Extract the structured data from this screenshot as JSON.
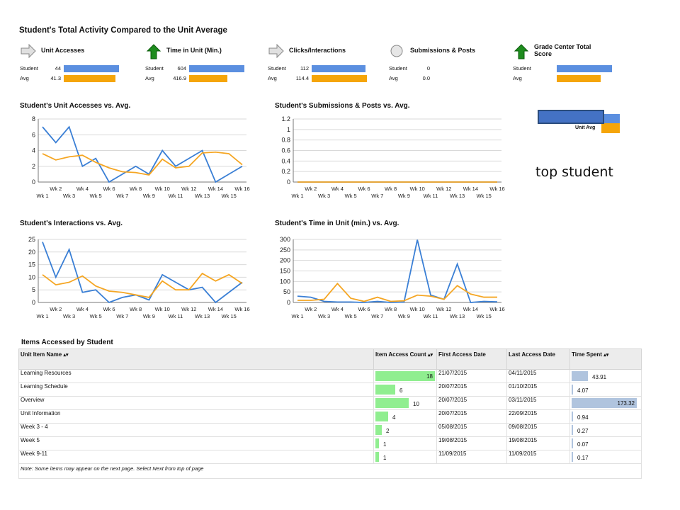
{
  "header": {
    "title": "Student's Total Activity Compared to the Unit Average"
  },
  "metrics": [
    {
      "label": "Unit Accesses",
      "icon": "gray-arrow-right-icon",
      "student": "44",
      "avg": "41.3",
      "student_frac": 1.0,
      "avg_frac": 0.94
    },
    {
      "label": "Time in Unit (Min.)",
      "icon": "green-arrow-up-icon",
      "student": "604",
      "avg": "416.9",
      "student_frac": 1.0,
      "avg_frac": 0.69
    },
    {
      "label": "Clicks/Interactions",
      "icon": "gray-arrow-right-icon",
      "student": "112",
      "avg": "114.4",
      "student_frac": 0.98,
      "avg_frac": 1.0
    },
    {
      "label": "Submissions & Posts",
      "icon": "gray-circle-icon",
      "student": "0",
      "avg": "0.0",
      "student_frac": 0,
      "avg_frac": 0
    },
    {
      "label": "Grade Center Total Score",
      "icon": "green-arrow-up-icon",
      "student": "",
      "avg": "",
      "student_frac": 1.0,
      "avg_frac": 0.8
    }
  ],
  "row_labels": {
    "student": "Student",
    "avg": "Avg"
  },
  "legend": {
    "label": "Unit Avg"
  },
  "annotation": "top student",
  "chart_data": [
    {
      "type": "line",
      "title": "Student's Unit Accesses vs. Avg.",
      "x": [
        "Wk 1",
        "Wk 2",
        "Wk 3",
        "Wk 4",
        "Wk 5",
        "Wk 6",
        "Wk 7",
        "Wk 8",
        "Wk 9",
        "Wk 10",
        "Wk 11",
        "Wk 12",
        "Wk 13",
        "Wk 14",
        "Wk 15",
        "Wk 16"
      ],
      "ylim": [
        0,
        8
      ],
      "yticks": [
        "0",
        "2",
        "4",
        "6",
        "8"
      ],
      "ytick_values": [
        0,
        2,
        4,
        6,
        8
      ],
      "series": [
        {
          "color": "#3a7fd5",
          "values": [
            7,
            5,
            7,
            2,
            3,
            0,
            1,
            2,
            1,
            4,
            2,
            3,
            4,
            0,
            1,
            2
          ]
        },
        {
          "color": "#f5a623",
          "values": [
            3.6,
            2.8,
            3.2,
            3.4,
            2.5,
            1.8,
            1.3,
            1.2,
            0.9,
            2.9,
            1.8,
            2.0,
            3.7,
            3.8,
            3.6,
            2.2
          ]
        }
      ]
    },
    {
      "type": "line",
      "title": "Student's Submissions & Posts vs. Avg.",
      "x": [
        "Wk 1",
        "Wk 2",
        "Wk 3",
        "Wk 4",
        "Wk 5",
        "Wk 6",
        "Wk 7",
        "Wk 8",
        "Wk 9",
        "Wk 10",
        "Wk 11",
        "Wk 12",
        "Wk 13",
        "Wk 14",
        "Wk 15",
        "Wk 16"
      ],
      "ylim": [
        0,
        1.2
      ],
      "yticks": [
        "0",
        "0.2",
        "0.4",
        "0.6",
        "0.8",
        "1",
        "1.2"
      ],
      "ytick_values": [
        0,
        0.2,
        0.4,
        0.6,
        0.8,
        1,
        1.2
      ],
      "series": [
        {
          "color": "#3a7fd5",
          "values": [
            0,
            0,
            0,
            0,
            0,
            0,
            0,
            0,
            0,
            0,
            0,
            0,
            0,
            0,
            0,
            0
          ]
        },
        {
          "color": "#f5a623",
          "values": [
            0,
            0,
            0,
            0,
            0,
            0,
            0,
            0,
            0,
            0,
            0,
            0,
            0,
            0,
            0,
            0
          ]
        }
      ]
    },
    {
      "type": "line",
      "title": "Student's Interactions vs. Avg.",
      "x": [
        "Wk 1",
        "Wk 2",
        "Wk 3",
        "Wk 4",
        "Wk 5",
        "Wk 6",
        "Wk 7",
        "Wk 8",
        "Wk 9",
        "Wk 10",
        "Wk 11",
        "Wk 12",
        "Wk 13",
        "Wk 14",
        "Wk 15",
        "Wk 16"
      ],
      "ylim": [
        0,
        25
      ],
      "yticks": [
        "0",
        "5",
        "10",
        "15",
        "20",
        "25"
      ],
      "ytick_values": [
        0,
        5,
        10,
        15,
        20,
        25
      ],
      "series": [
        {
          "color": "#3a7fd5",
          "values": [
            24,
            10,
            21,
            4,
            5,
            0,
            2,
            3,
            1,
            11,
            8,
            5,
            6,
            0,
            4,
            8
          ]
        },
        {
          "color": "#f5a623",
          "values": [
            11,
            7,
            8,
            10.5,
            6.5,
            4.5,
            4,
            3,
            2,
            8.5,
            5,
            5,
            11.5,
            8.5,
            11,
            7.5
          ]
        }
      ]
    },
    {
      "type": "line",
      "title": "Student's Time in Unit (min.) vs. Avg.",
      "x": [
        "Wk 1",
        "Wk 2",
        "Wk 3",
        "Wk 4",
        "Wk 5",
        "Wk 6",
        "Wk 7",
        "Wk 8",
        "Wk 9",
        "Wk 10",
        "Wk 11",
        "Wk 12",
        "Wk 13",
        "Wk 14",
        "Wk 15",
        "Wk 16"
      ],
      "ylim": [
        0,
        300
      ],
      "yticks": [
        "0",
        "50",
        "100",
        "150",
        "200",
        "250",
        "300"
      ],
      "ytick_values": [
        0,
        50,
        100,
        150,
        200,
        250,
        300
      ],
      "series": [
        {
          "color": "#3a7fd5",
          "values": [
            30,
            25,
            5,
            2,
            2,
            0,
            5,
            0,
            2,
            298,
            35,
            15,
            183,
            0,
            5,
            3
          ]
        },
        {
          "color": "#f5a623",
          "values": [
            10,
            10,
            15,
            90,
            20,
            5,
            25,
            5,
            8,
            35,
            30,
            15,
            80,
            40,
            25,
            25
          ]
        }
      ]
    }
  ],
  "table": {
    "title": "Items Accessed by Student",
    "headers": {
      "name": "Unit Item Name",
      "count": "Item Access Count",
      "first": "First Access Date",
      "last": "Last Access Date",
      "time": "Time Spent"
    },
    "rows": [
      {
        "name": "Learning Resources",
        "count": "18",
        "count_frac": 1.0,
        "first": "21/07/2015",
        "last": "04/11/2015",
        "time": "43.91",
        "time_frac": 0.25
      },
      {
        "name": "Learning Schedule",
        "count": "6",
        "count_frac": 0.33,
        "first": "20/07/2015",
        "last": "01/10/2015",
        "time": "4.07",
        "time_frac": 0.023
      },
      {
        "name": "Overview",
        "count": "10",
        "count_frac": 0.56,
        "first": "20/07/2015",
        "last": "03/11/2015",
        "time": "173.32",
        "time_frac": 1.0
      },
      {
        "name": "Unit Information",
        "count": "4",
        "count_frac": 0.22,
        "first": "20/07/2015",
        "last": "22/09/2015",
        "time": "0.94",
        "time_frac": 0.006
      },
      {
        "name": "Week 3 - 4",
        "count": "2",
        "count_frac": 0.11,
        "first": "05/08/2015",
        "last": "09/08/2015",
        "time": "0.27",
        "time_frac": 0.002
      },
      {
        "name": "Week 5",
        "count": "1",
        "count_frac": 0.06,
        "first": "19/08/2015",
        "last": "19/08/2015",
        "time": "0.07",
        "time_frac": 0.001
      },
      {
        "name": "Week 9-11",
        "count": "1",
        "count_frac": 0.06,
        "first": "11/09/2015",
        "last": "11/09/2015",
        "time": "0.17",
        "time_frac": 0.001
      }
    ],
    "note": "Note: Some items may appear on the next page. Select Next from top of page"
  }
}
